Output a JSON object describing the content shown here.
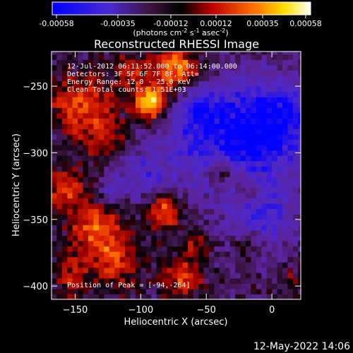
{
  "colorbar": {
    "tick_labels": [
      "-0.00058",
      "-0.00035",
      "-0.00012",
      "0.00012",
      "0.00035",
      "0.00058"
    ],
    "units": "(photons cm",
    "units_exp1": "-2",
    "units_mid": " s",
    "units_exp2": "-1",
    "units_end": " asec",
    "units_exp3": "-2",
    "units_close": ")"
  },
  "chart_data": {
    "type": "heatmap",
    "title": "Reconstructed RHESSI Image",
    "xlabel": "Heliocentric X (arcsec)",
    "ylabel": "Heliocentric Y (arcsec)",
    "xlim": [
      -168,
      22
    ],
    "ylim": [
      -410,
      -224
    ],
    "x_ticks": [
      -150,
      -100,
      -50,
      0
    ],
    "x_tick_labels": [
      "−150",
      "−100",
      "−50",
      "0"
    ],
    "y_ticks": [
      -250,
      -300,
      -350,
      -400
    ],
    "y_tick_labels": [
      "−250",
      "−300",
      "−350",
      "−400"
    ],
    "colorscale": [
      "#0000ff",
      "#5a2ab0",
      "#3c143c",
      "#000000",
      "#b40000",
      "#ff6a00",
      "#ffd200",
      "#ffffff"
    ],
    "value_range": [
      -0.00058,
      0.00058
    ],
    "annotations": [
      "12-Jul-2012 06:11:52.000 to 06:14:00.000",
      "Detectors: 3F 5F 6F 7F 8F, Att=",
      "Energy Range: 12.0 - 25.0 keV",
      "Clean     Total counts: 1.51E+03"
    ],
    "peak_label": "Position of Peak = [-94,-264]",
    "peak": [
      -94,
      -264
    ]
  },
  "timestamp": "12-May-2022 14:06"
}
